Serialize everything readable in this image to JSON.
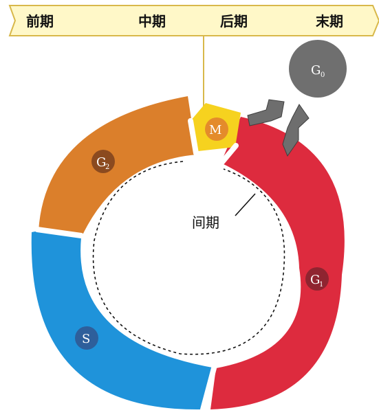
{
  "mitosis_banner": {
    "phases": [
      "前期",
      "中期",
      "后期",
      "末期"
    ],
    "fill_color": "#fff8c8",
    "border_color": "#d8b84a"
  },
  "cycle": {
    "m_phase": {
      "label": "M",
      "color": "#f6d21f",
      "badge_color": "#e48b2b"
    },
    "g1_phase": {
      "label": "G",
      "subscript": "1",
      "color": "#dd2b3e",
      "badge_color": "#8f2430"
    },
    "s_phase": {
      "label": "S",
      "color": "#1f93da",
      "badge_color": "#2e5f9b"
    },
    "g2_phase": {
      "label": "G",
      "subscript": "2",
      "color": "#db7f2b",
      "badge_color": "#8b4a1f"
    },
    "g0_phase": {
      "label": "G",
      "subscript": "0",
      "color": "#6f6f6f"
    },
    "interphase_label": "间期",
    "arrow_color": "#6e6e6e"
  }
}
